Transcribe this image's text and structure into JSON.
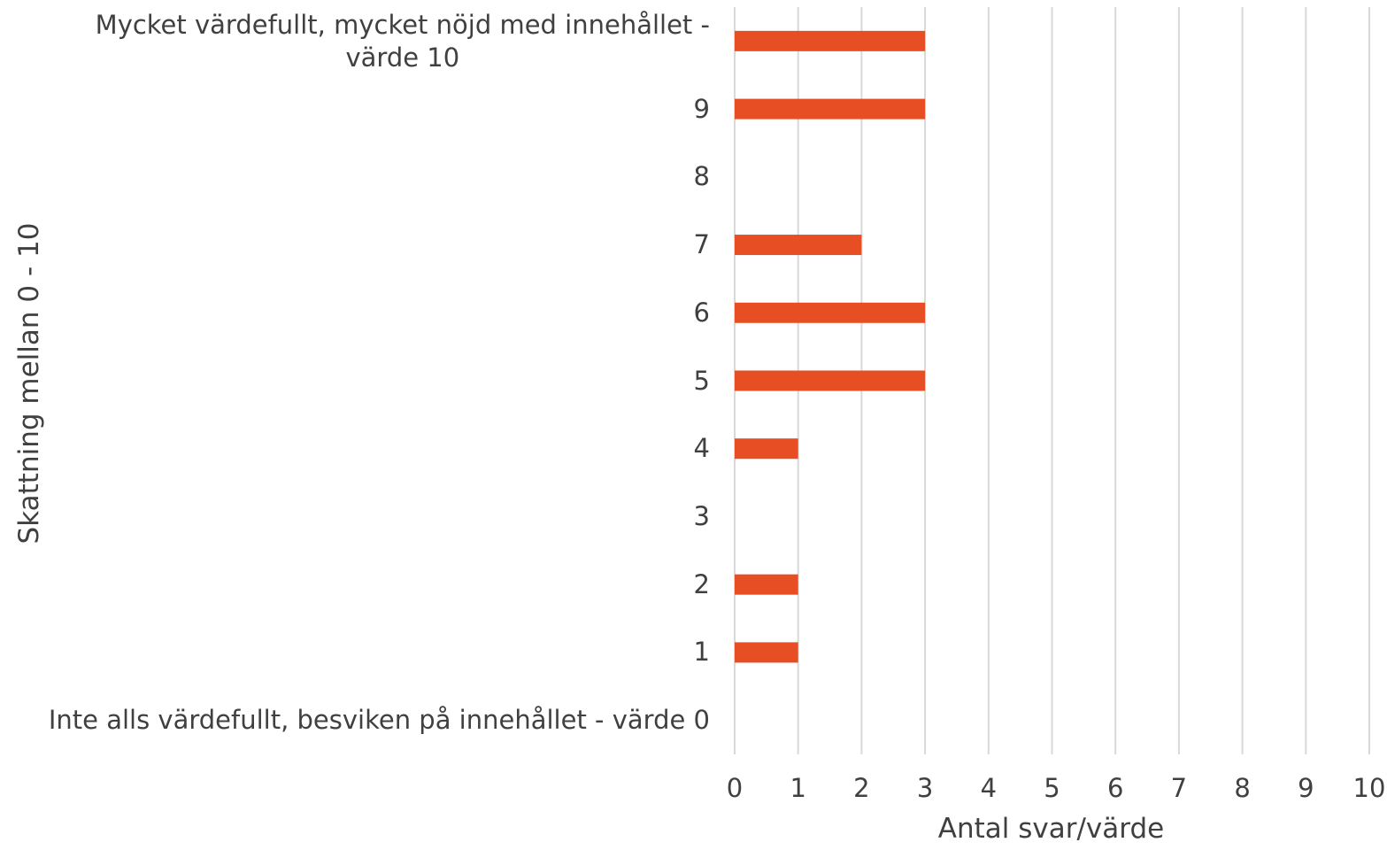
{
  "chart_data": {
    "type": "bar",
    "orientation": "horizontal",
    "categories": [
      "Inte alls värdefullt, besviken på innehållet - värde 0",
      "1",
      "2",
      "3",
      "4",
      "5",
      "6",
      "7",
      "8",
      "9",
      "Mycket värdefullt, mycket nöjd med innehållet - värde 10"
    ],
    "category_lines": [
      [
        "Inte alls värdefullt, besviken på innehållet - värde 0"
      ],
      [
        "1"
      ],
      [
        "2"
      ],
      [
        "3"
      ],
      [
        "4"
      ],
      [
        "5"
      ],
      [
        "6"
      ],
      [
        "7"
      ],
      [
        "8"
      ],
      [
        "9"
      ],
      [
        "Mycket värdefullt, mycket nöjd med innehållet -",
        "värde 10"
      ]
    ],
    "values": [
      0,
      1,
      1,
      0,
      1,
      3,
      3,
      2,
      0,
      3,
      3
    ],
    "xlabel": "Antal svar/värde",
    "ylabel": "Skattning mellan 0 - 10",
    "xlim": [
      0,
      10
    ],
    "xticks": [
      "0",
      "1",
      "2",
      "3",
      "4",
      "5",
      "6",
      "7",
      "8",
      "9",
      "10"
    ],
    "grid": "vertical",
    "legend": "none",
    "bar_color": "#E84E24",
    "grid_color": "#D9D9D9"
  }
}
